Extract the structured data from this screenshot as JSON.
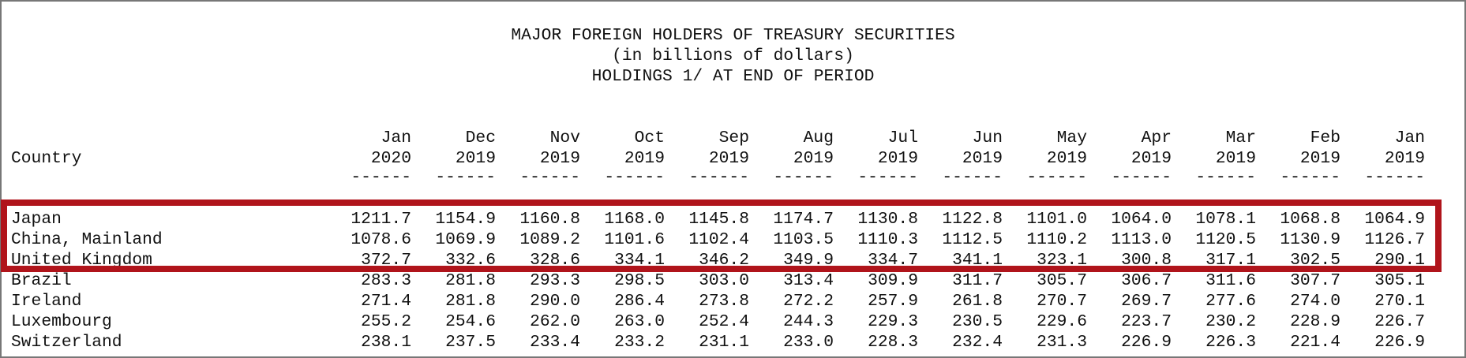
{
  "title": {
    "line1": "MAJOR FOREIGN HOLDERS OF TREASURY SECURITIES",
    "line2": "(in billions of dollars)",
    "line3": "HOLDINGS 1/ AT END OF PERIOD"
  },
  "country_header": "Country",
  "columns": [
    {
      "month": "Jan",
      "year": "2020"
    },
    {
      "month": "Dec",
      "year": "2019"
    },
    {
      "month": "Nov",
      "year": "2019"
    },
    {
      "month": "Oct",
      "year": "2019"
    },
    {
      "month": "Sep",
      "year": "2019"
    },
    {
      "month": "Aug",
      "year": "2019"
    },
    {
      "month": "Jul",
      "year": "2019"
    },
    {
      "month": "Jun",
      "year": "2019"
    },
    {
      "month": "May",
      "year": "2019"
    },
    {
      "month": "Apr",
      "year": "2019"
    },
    {
      "month": "Mar",
      "year": "2019"
    },
    {
      "month": "Feb",
      "year": "2019"
    },
    {
      "month": "Jan",
      "year": "2019"
    }
  ],
  "separator": "------",
  "rows": [
    {
      "country": "Japan",
      "values": [
        "1211.7",
        "1154.9",
        "1160.8",
        "1168.0",
        "1145.8",
        "1174.7",
        "1130.8",
        "1122.8",
        "1101.0",
        "1064.0",
        "1078.1",
        "1068.8",
        "1064.9"
      ]
    },
    {
      "country": "China, Mainland",
      "values": [
        "1078.6",
        "1069.9",
        "1089.2",
        "1101.6",
        "1102.4",
        "1103.5",
        "1110.3",
        "1112.5",
        "1110.2",
        "1113.0",
        "1120.5",
        "1130.9",
        "1126.7"
      ]
    },
    {
      "country": "United Kingdom",
      "values": [
        "372.7",
        "332.6",
        "328.6",
        "334.1",
        "346.2",
        "349.9",
        "334.7",
        "341.1",
        "323.1",
        "300.8",
        "317.1",
        "302.5",
        "290.1"
      ]
    },
    {
      "country": "Brazil",
      "values": [
        "283.3",
        "281.8",
        "293.3",
        "298.5",
        "303.0",
        "313.4",
        "309.9",
        "311.7",
        "305.7",
        "306.7",
        "311.6",
        "307.7",
        "305.1"
      ]
    },
    {
      "country": "Ireland",
      "values": [
        "271.4",
        "281.8",
        "290.0",
        "286.4",
        "273.8",
        "272.2",
        "257.9",
        "261.8",
        "270.7",
        "269.7",
        "277.6",
        "274.0",
        "270.1"
      ]
    },
    {
      "country": "Luxembourg",
      "values": [
        "255.2",
        "254.6",
        "262.0",
        "263.0",
        "252.4",
        "244.3",
        "229.3",
        "230.5",
        "229.6",
        "223.7",
        "230.2",
        "228.9",
        "226.7"
      ]
    },
    {
      "country": "Switzerland",
      "values": [
        "238.1",
        "237.5",
        "233.4",
        "233.2",
        "231.1",
        "233.0",
        "228.3",
        "232.4",
        "231.3",
        "226.9",
        "226.3",
        "221.4",
        "226.9"
      ]
    }
  ],
  "highlight": {
    "color": "#b0141b",
    "rows": [
      "Japan",
      "China, Mainland",
      "United Kingdom"
    ]
  }
}
